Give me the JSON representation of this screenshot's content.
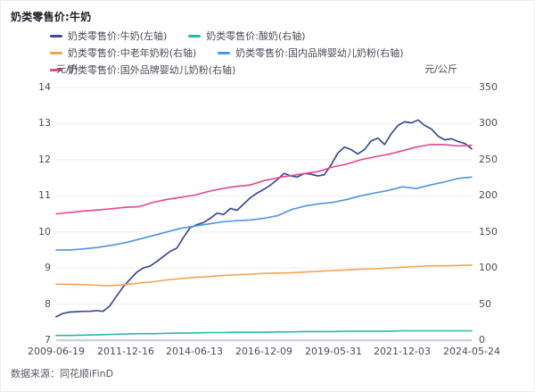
{
  "title": "奶类零售价:牛奶",
  "source": "数据来源：同花顺iFinD",
  "colors": {
    "grid_line": "#eceef5",
    "axis_line": "#ccd2de",
    "tick_text": "#4a4e57",
    "title_text": "#1b1e24"
  },
  "chart_data": {
    "type": "line",
    "title": "奶类零售价:牛奶",
    "grid": true,
    "legend_position": "top",
    "x_labels": [
      "2009-06-19",
      "2011-12-16",
      "2014-06-13",
      "2016-12-09",
      "2019-05-31",
      "2021-12-03",
      "2024-05-24"
    ],
    "left_axis": {
      "unit": "元/升",
      "min": 7,
      "max": 14,
      "ticks": [
        14,
        13,
        12,
        11,
        10,
        9,
        8,
        7
      ]
    },
    "right_axis": {
      "unit": "元/公斤",
      "min": 0,
      "max": 350,
      "ticks": [
        350,
        300,
        250,
        200,
        150,
        100,
        50,
        0
      ]
    },
    "series": [
      {
        "id": "milk",
        "name": "奶类零售价:牛奶(左轴)",
        "axis": "left",
        "color": "#3e4b97",
        "width": 1.7,
        "values": [
          7.65,
          7.74,
          7.78,
          7.79,
          7.8,
          7.8,
          7.82,
          7.8,
          7.95,
          8.22,
          8.48,
          8.68,
          8.88,
          9.0,
          9.05,
          9.18,
          9.32,
          9.46,
          9.55,
          9.85,
          10.12,
          10.2,
          10.26,
          10.38,
          10.52,
          10.48,
          10.65,
          10.6,
          10.78,
          10.95,
          11.08,
          11.18,
          11.3,
          11.45,
          11.62,
          11.55,
          11.52,
          11.62,
          11.6,
          11.55,
          11.58,
          11.85,
          12.18,
          12.35,
          12.28,
          12.16,
          12.28,
          12.52,
          12.6,
          12.42,
          12.72,
          12.95,
          13.05,
          13.02,
          13.1,
          12.95,
          12.85,
          12.65,
          12.55,
          12.58,
          12.5,
          12.45,
          12.3
        ]
      },
      {
        "id": "yogurt",
        "name": "奶类零售价:酸奶(右轴)",
        "axis": "right",
        "color": "#2ab7a9",
        "width": 1.6,
        "values": [
          6.5,
          6.5,
          7,
          7.5,
          8,
          8.5,
          9,
          9,
          9.5,
          10,
          10,
          10.5,
          10.5,
          11,
          11,
          11,
          11.5,
          11.5,
          12,
          12,
          12,
          12.5,
          12.5,
          12.5,
          12.5,
          13,
          13,
          13,
          13,
          13,
          13
        ]
      },
      {
        "id": "senior-milk-powder",
        "name": "奶类零售价:中老年奶粉(右轴)",
        "axis": "right",
        "color": "#f6a44e",
        "width": 1.6,
        "values": [
          77.5,
          77.5,
          77,
          76,
          75.5,
          77,
          79,
          81,
          83.5,
          85.5,
          87,
          88,
          89.5,
          90.5,
          91.5,
          92.5,
          93,
          93.5,
          94.5,
          95.5,
          96.5,
          97.5,
          98.5,
          99,
          100,
          101,
          102,
          103,
          103,
          103.5,
          104
        ]
      },
      {
        "id": "domestic-infant-formula",
        "name": "奶类零售价:国内品牌婴幼儿奶粉(右轴)",
        "axis": "right",
        "color": "#4e95e2",
        "width": 1.6,
        "values": [
          125,
          125,
          126.5,
          128.5,
          131.5,
          135,
          140,
          145,
          150,
          155,
          158,
          161,
          164,
          165.5,
          166.5,
          169,
          172.5,
          181,
          186,
          189,
          191,
          195,
          200,
          204,
          207.5,
          212.5,
          210,
          215,
          219,
          224,
          226
        ]
      },
      {
        "id": "foreign-infant-formula",
        "name": "奶类零售价:国外品牌婴幼儿奶粉(右轴)",
        "axis": "right",
        "color": "#e2498f",
        "width": 1.6,
        "values": [
          175,
          177,
          179,
          180.5,
          182,
          184,
          185,
          191,
          195,
          198,
          201,
          206,
          210,
          213,
          215,
          221,
          225,
          228,
          231,
          234,
          240,
          244,
          250,
          254,
          257.5,
          262.5,
          267.5,
          271,
          271,
          269,
          270
        ]
      }
    ]
  }
}
